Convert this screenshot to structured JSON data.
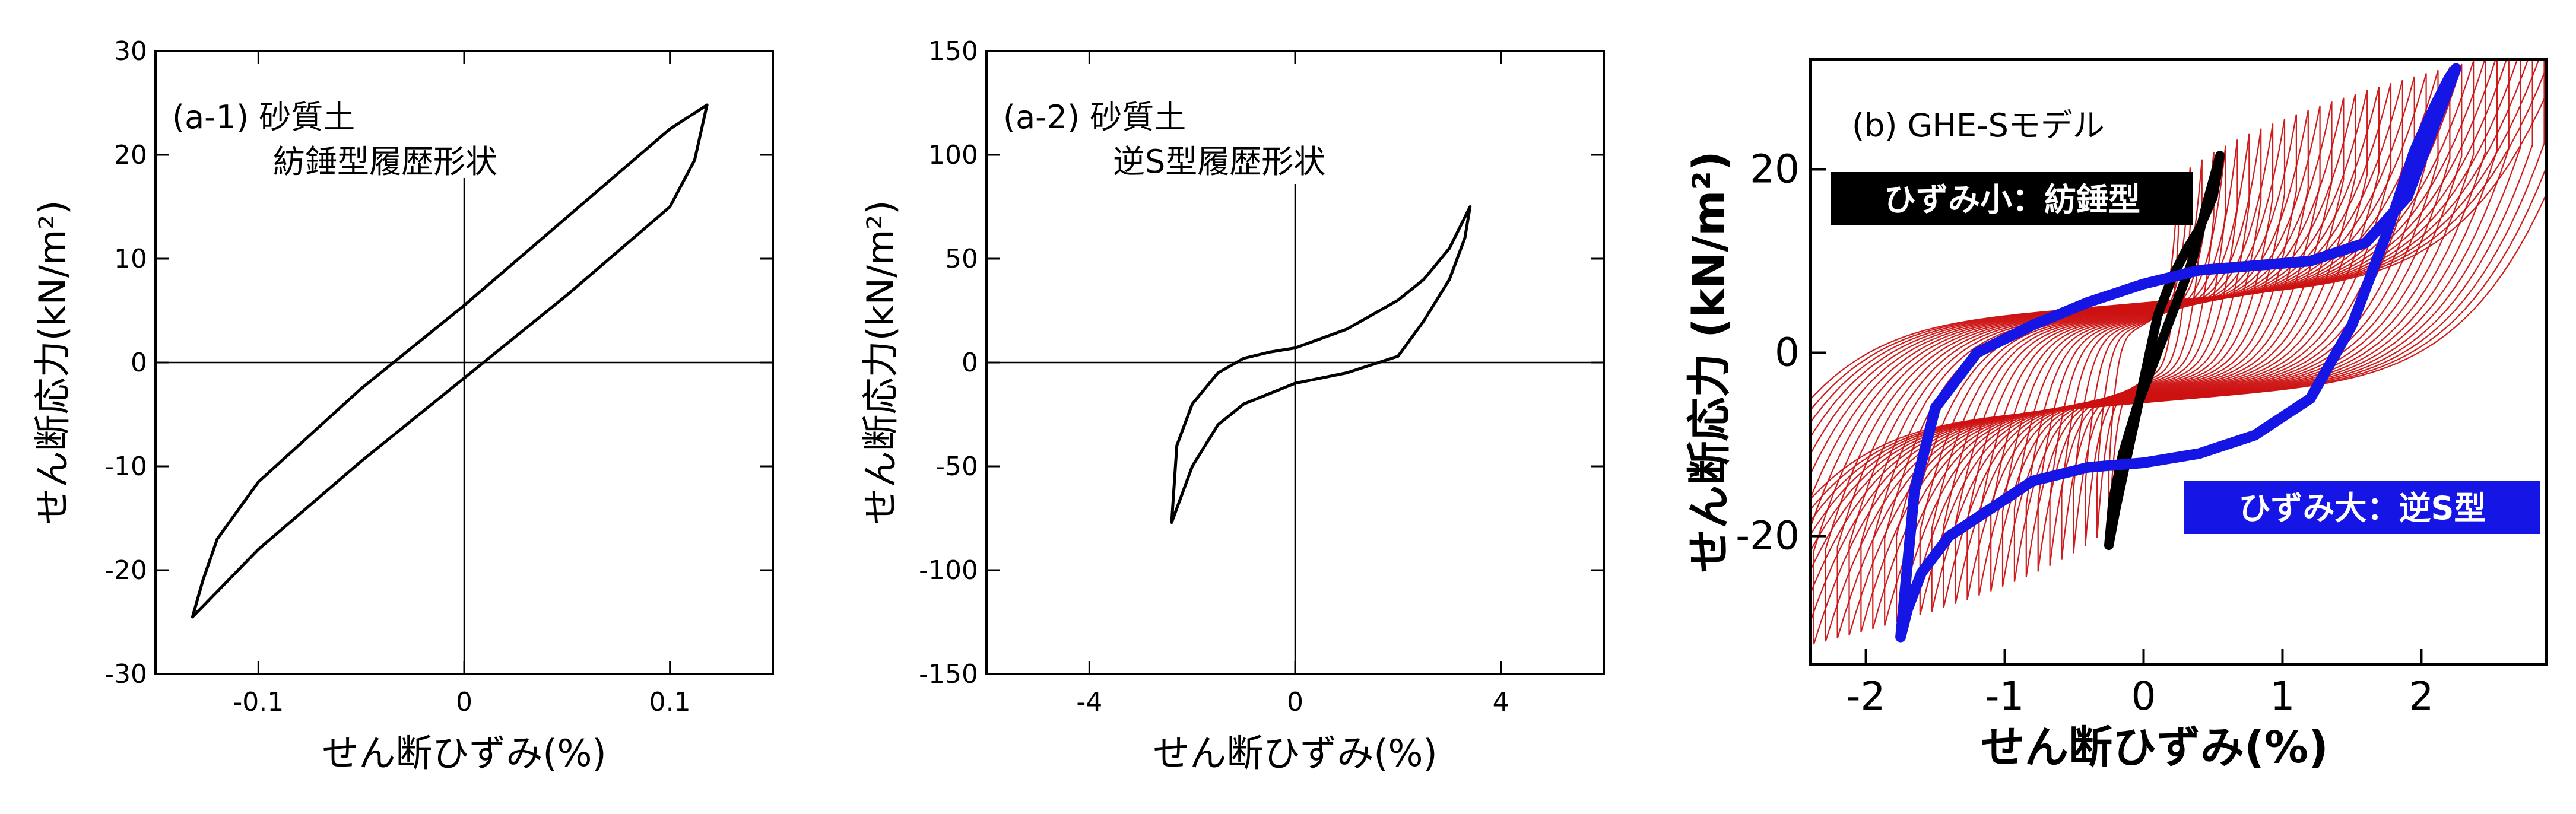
{
  "chart_data": [
    {
      "type": "line",
      "panel_label": "(a-1) 砂質土",
      "annotation": "紡錘型履歴形状",
      "xlabel": "せん断ひずみ(%)",
      "ylabel": "せん断応力(kN/m²)",
      "xlim": [
        -0.15,
        0.15
      ],
      "ylim": [
        -30,
        30
      ],
      "xticks": [
        -0.1,
        0,
        0.1
      ],
      "xtick_labels": [
        "-0.1",
        "0",
        "0.1"
      ],
      "yticks": [
        -30,
        -20,
        -10,
        0,
        10,
        20,
        30
      ],
      "ytick_labels": [
        "-30",
        "-20",
        "-10",
        "0",
        "10",
        "20",
        "30"
      ],
      "series": [
        {
          "color": "#000000",
          "x": [
            -0.132,
            -0.1,
            -0.05,
            0,
            0.05,
            0.1,
            0.112,
            0.118,
            0.1,
            0.05,
            0,
            -0.05,
            -0.1,
            -0.12,
            -0.127,
            -0.132
          ],
          "y": [
            -24.5,
            -18.0,
            -9.5,
            -1.5,
            6.5,
            15.0,
            19.5,
            24.8,
            22.5,
            14.0,
            5.5,
            -2.5,
            -11.5,
            -17.0,
            -21.0,
            -24.5
          ]
        }
      ]
    },
    {
      "type": "line",
      "panel_label": "(a-2) 砂質土",
      "annotation": "逆S型履歴形状",
      "xlabel": "せん断ひずみ(%)",
      "ylabel": "せん断応力(kN/m²)",
      "xlim": [
        -6,
        6
      ],
      "ylim": [
        -150,
        150
      ],
      "xticks": [
        -4,
        0,
        4
      ],
      "xtick_labels": [
        "-4",
        "0",
        "4"
      ],
      "yticks": [
        -150,
        -100,
        -50,
        0,
        50,
        100,
        150
      ],
      "ytick_labels": [
        "-150",
        "-100",
        "-50",
        "0",
        "50",
        "100",
        "150"
      ],
      "series": [
        {
          "color": "#000000",
          "x": [
            -2.4,
            -2.0,
            -1.5,
            -1.0,
            -0.5,
            0,
            1.0,
            2.0,
            2.5,
            3.0,
            3.3,
            3.4,
            3.0,
            2.5,
            2.0,
            1.0,
            0,
            -0.5,
            -1.0,
            -1.5,
            -2.0,
            -2.3,
            -2.4
          ],
          "y": [
            -77,
            -50,
            -30,
            -20,
            -15,
            -10,
            -5,
            3,
            20,
            40,
            60,
            75,
            55,
            40,
            30,
            16,
            7,
            5,
            2,
            -5,
            -20,
            -40,
            -77
          ]
        }
      ]
    },
    {
      "type": "line",
      "panel_label": "(b) GHE-Sモデル",
      "xlabel": "せん断ひずみ(%)",
      "ylabel": "せん断応力 (kN/m²)",
      "xlim": [
        -2.4,
        2.9
      ],
      "ylim": [
        -34,
        32
      ],
      "xticks": [
        -2,
        -1,
        0,
        1,
        2
      ],
      "xtick_labels": [
        "-2",
        "-1",
        "0",
        "1",
        "2"
      ],
      "yticks": [
        -20,
        0,
        20
      ],
      "ytick_labels": [
        "-20",
        "0",
        "20"
      ],
      "labels": {
        "small_strain": "ひずみ小：紡錘型",
        "large_strain": "ひずみ大：逆S型"
      },
      "colors": {
        "family": "#cc1111",
        "small": "#000000",
        "large": "#1515e6"
      },
      "series": [
        {
          "label": "ひずみ小：紡錘型",
          "color": "#000000",
          "x": [
            -0.25,
            -0.2,
            -0.1,
            0,
            0.1,
            0.2,
            0.3,
            0.4,
            0.5,
            0.55,
            0.45,
            0.35,
            0.25,
            0.15,
            0.05,
            -0.05,
            -0.15,
            -0.22,
            -0.25
          ],
          "y": [
            -21,
            -17,
            -10,
            -3,
            4,
            8,
            11,
            13.5,
            17,
            21.5,
            16,
            10,
            6,
            2,
            -2,
            -6,
            -11,
            -16,
            -21
          ]
        },
        {
          "label": "ひずみ大：逆S型",
          "color": "#1515e6",
          "x": [
            2.25,
            2.1,
            1.9,
            1.6,
            1.2,
            0.8,
            0.4,
            0,
            -0.4,
            -0.8,
            -1.2,
            -1.5,
            -1.65,
            -1.75,
            -1.7,
            -1.6,
            -1.4,
            -1.1,
            -0.8,
            -0.4,
            0,
            0.4,
            0.8,
            1.2,
            1.5,
            1.75,
            1.95,
            2.1,
            2.2,
            2.25
          ],
          "y": [
            31,
            25,
            17,
            12,
            10,
            9.5,
            9,
            7.5,
            5.5,
            3,
            0,
            -6,
            -15,
            -31,
            -28,
            -24,
            -20,
            -17,
            -14,
            -12.5,
            -12,
            -11,
            -9,
            -5,
            3,
            13,
            22,
            27,
            30,
            31
          ]
        }
      ]
    }
  ]
}
